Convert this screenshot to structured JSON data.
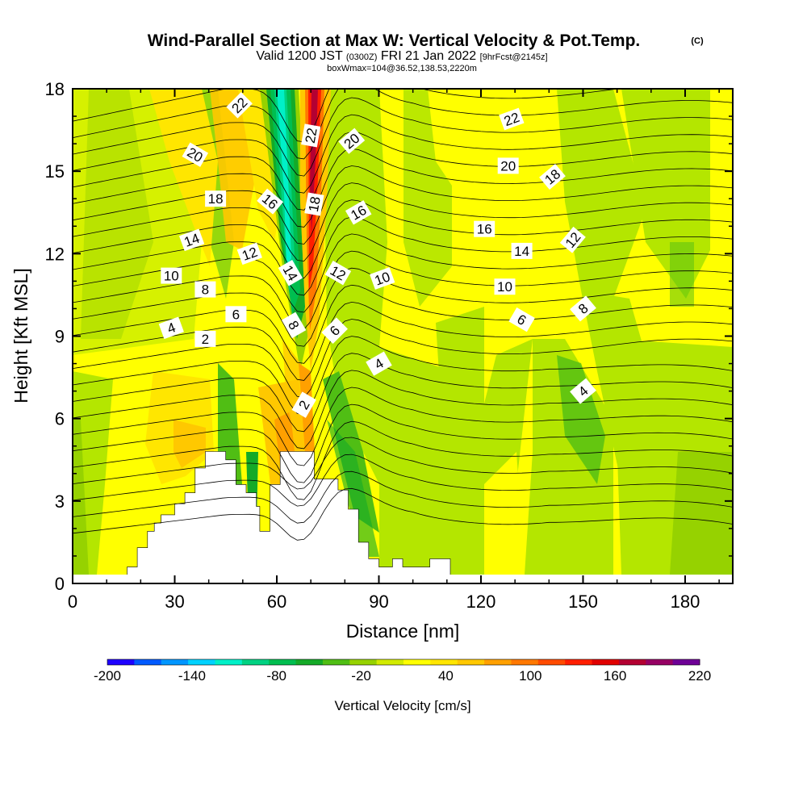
{
  "title": {
    "main": "Wind-Parallel Section at Max W: Vertical Velocity & Pot.Temp.",
    "copyright": "(C)",
    "valid_prefix": "Valid 1200 JST",
    "valid_utc": "(0300Z)",
    "valid_date": "FRI 21 Jan 2022",
    "forecast": "[9hrFcst@2145z]",
    "box": "boxWmax=104@36.52,138.53,2220m"
  },
  "chart_data": {
    "type": "heatmap",
    "xlabel": "Distance [nm]",
    "ylabel": "Height [Kft MSL]",
    "xlim": [
      0,
      194
    ],
    "ylim": [
      0,
      18
    ],
    "x_ticks": [
      "0",
      "30",
      "60",
      "90",
      "120",
      "150",
      "180"
    ],
    "x_tick_values": [
      0,
      30,
      60,
      90,
      120,
      150,
      180
    ],
    "y_ticks": [
      "0",
      "3",
      "6",
      "9",
      "12",
      "15",
      "18"
    ],
    "y_tick_values": [
      0,
      3,
      6,
      9,
      12,
      15,
      18
    ],
    "colorbar": {
      "title": "Vertical Velocity [cm/s]",
      "labels": [
        "-200",
        "-140",
        "-80",
        "-20",
        "40",
        "100",
        "160",
        "220"
      ],
      "label_values": [
        -200,
        -140,
        -80,
        -20,
        40,
        100,
        160,
        220
      ],
      "colors": [
        "#1e00ff",
        "#005aff",
        "#0096ff",
        "#00d2ff",
        "#00f0c8",
        "#00d282",
        "#00be50",
        "#14aa28",
        "#50be14",
        "#96d200",
        "#d2eb00",
        "#ffff00",
        "#ffe600",
        "#ffc800",
        "#ffa000",
        "#ff7800",
        "#ff4b00",
        "#ff1e00",
        "#e10000",
        "#b40032",
        "#960064",
        "#6e0096"
      ]
    },
    "contour_field": "Potential temperature",
    "contour_labels": [
      {
        "text": "22",
        "x": 49,
        "y": 17.4,
        "rot": -45
      },
      {
        "text": "20",
        "x": 36,
        "y": 15.6,
        "rot": 30
      },
      {
        "text": "18",
        "x": 42,
        "y": 14.0,
        "rot": 0
      },
      {
        "text": "16",
        "x": 58,
        "y": 13.9,
        "rot": 40
      },
      {
        "text": "14",
        "x": 35,
        "y": 12.5,
        "rot": -20
      },
      {
        "text": "12",
        "x": 52,
        "y": 12.0,
        "rot": -20
      },
      {
        "text": "10",
        "x": 29,
        "y": 11.2,
        "rot": 0
      },
      {
        "text": "8",
        "x": 39,
        "y": 10.7,
        "rot": 0
      },
      {
        "text": "6",
        "x": 48,
        "y": 9.8,
        "rot": 0
      },
      {
        "text": "4",
        "x": 29,
        "y": 9.3,
        "rot": -20
      },
      {
        "text": "2",
        "x": 39,
        "y": 8.9,
        "rot": 0
      },
      {
        "text": "14",
        "x": 64,
        "y": 11.3,
        "rot": 60
      },
      {
        "text": "8",
        "x": 65,
        "y": 9.4,
        "rot": 60
      },
      {
        "text": "2",
        "x": 68,
        "y": 6.5,
        "rot": -60
      },
      {
        "text": "22",
        "x": 70,
        "y": 16.3,
        "rot": -80
      },
      {
        "text": "18",
        "x": 71,
        "y": 13.8,
        "rot": -80
      },
      {
        "text": "20",
        "x": 82,
        "y": 16.1,
        "rot": -40
      },
      {
        "text": "16",
        "x": 84,
        "y": 13.5,
        "rot": -30
      },
      {
        "text": "12",
        "x": 78,
        "y": 11.3,
        "rot": 30
      },
      {
        "text": "6",
        "x": 77,
        "y": 9.2,
        "rot": -45
      },
      {
        "text": "10",
        "x": 91,
        "y": 11.1,
        "rot": -20
      },
      {
        "text": "4",
        "x": 90,
        "y": 8.0,
        "rot": -30
      },
      {
        "text": "22",
        "x": 129,
        "y": 16.9,
        "rot": -20
      },
      {
        "text": "20",
        "x": 128,
        "y": 15.2,
        "rot": 0
      },
      {
        "text": "18",
        "x": 141,
        "y": 14.8,
        "rot": -40
      },
      {
        "text": "16",
        "x": 121,
        "y": 12.9,
        "rot": 0
      },
      {
        "text": "14",
        "x": 132,
        "y": 12.1,
        "rot": 0
      },
      {
        "text": "12",
        "x": 147,
        "y": 12.5,
        "rot": -50
      },
      {
        "text": "10",
        "x": 127,
        "y": 10.8,
        "rot": 0
      },
      {
        "text": "6",
        "x": 132,
        "y": 9.6,
        "rot": 30
      },
      {
        "text": "8",
        "x": 150,
        "y": 10.0,
        "rot": -40
      },
      {
        "text": "4",
        "x": 150,
        "y": 7.0,
        "rot": -40
      }
    ],
    "terrain": [
      [
        0,
        0.3
      ],
      [
        16,
        0.3
      ],
      [
        16,
        0.6
      ],
      [
        19,
        0.6
      ],
      [
        19,
        1.3
      ],
      [
        22,
        1.3
      ],
      [
        22,
        1.9
      ],
      [
        24,
        1.9
      ],
      [
        24,
        2.2
      ],
      [
        26,
        2.2
      ],
      [
        26,
        2.5
      ],
      [
        30,
        2.5
      ],
      [
        30,
        2.9
      ],
      [
        33,
        2.9
      ],
      [
        33,
        3.3
      ],
      [
        36,
        3.3
      ],
      [
        36,
        4.2
      ],
      [
        39,
        4.2
      ],
      [
        39,
        4.8
      ],
      [
        45,
        4.8
      ],
      [
        45,
        4.5
      ],
      [
        48,
        4.5
      ],
      [
        48,
        3.6
      ],
      [
        51,
        3.6
      ],
      [
        51,
        3.3
      ],
      [
        54,
        3.3
      ],
      [
        54,
        2.8
      ],
      [
        55,
        2.8
      ],
      [
        55,
        1.9
      ],
      [
        58,
        1.9
      ],
      [
        58,
        3.6
      ],
      [
        61,
        3.6
      ],
      [
        61,
        4.8
      ],
      [
        71,
        4.8
      ],
      [
        71,
        3.8
      ],
      [
        78,
        3.8
      ],
      [
        78,
        3.4
      ],
      [
        81,
        3.4
      ],
      [
        81,
        2.7
      ],
      [
        84,
        2.7
      ],
      [
        84,
        1.5
      ],
      [
        87,
        1.5
      ],
      [
        87,
        0.9
      ],
      [
        90,
        0.9
      ],
      [
        90,
        0.6
      ],
      [
        94,
        0.6
      ],
      [
        94,
        0.9
      ],
      [
        97,
        0.9
      ],
      [
        97,
        0.6
      ],
      [
        105,
        0.6
      ],
      [
        105,
        0.9
      ],
      [
        111,
        0.9
      ],
      [
        111,
        0.3
      ],
      [
        194,
        0.3
      ]
    ]
  }
}
